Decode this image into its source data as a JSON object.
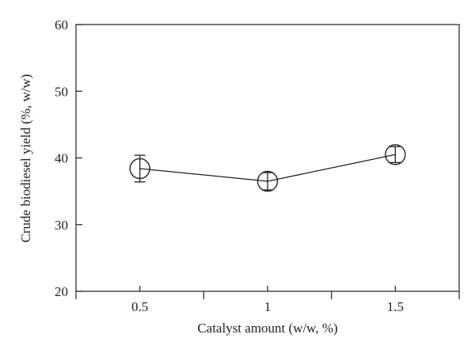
{
  "chart_data": {
    "type": "line",
    "title": "",
    "xlabel": "Catalyst amount (w/w, %)",
    "ylabel": "Crude biodiesel yield (%, w/w)",
    "x": [
      0.5,
      1,
      1.5
    ],
    "x_tick_labels": [
      "0.5",
      "1",
      "1.5"
    ],
    "xlim": [
      0.25,
      1.75
    ],
    "ylim": [
      20,
      60
    ],
    "y_ticks": [
      20,
      30,
      40,
      50,
      60
    ],
    "y_tick_labels": [
      "20",
      "30",
      "40",
      "50",
      "60"
    ],
    "grid": false,
    "legend": "none",
    "series": [
      {
        "values": [
          38.4,
          36.5,
          40.5
        ],
        "error": [
          2.0,
          1.3,
          1.2
        ],
        "marker": "open-circle",
        "color": "#231f20"
      }
    ]
  }
}
